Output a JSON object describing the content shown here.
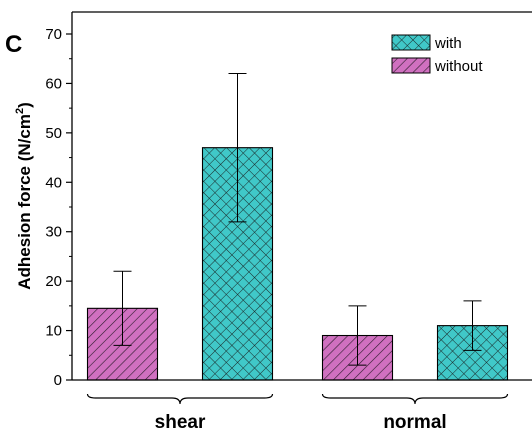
{
  "panel_label": "C",
  "chart_data": {
    "type": "bar",
    "title": "",
    "xlabel": "",
    "ylabel": "Adhesion force (N/cm²)",
    "ylabel_main": "Adhesion force (N/cm",
    "ylabel_sup": "2",
    "ylabel_tail": ")",
    "ylim": [
      0,
      70
    ],
    "yticks": [
      0,
      10,
      20,
      30,
      40,
      50,
      60,
      70
    ],
    "categories": [
      "shear",
      "normal"
    ],
    "series": [
      {
        "name": "without",
        "color": "#d070c0",
        "pattern": "diagonal-hatch",
        "values": [
          14.5,
          9
        ],
        "error_low": [
          7,
          3
        ],
        "error_high": [
          22,
          15
        ]
      },
      {
        "name": "with",
        "color": "#40c8c8",
        "pattern": "crosshatch",
        "values": [
          47,
          11
        ],
        "error_low": [
          32,
          6
        ],
        "error_high": [
          62,
          16
        ]
      }
    ],
    "legend": {
      "position": "top-right",
      "order": [
        "with",
        "without"
      ]
    },
    "grid": false
  }
}
